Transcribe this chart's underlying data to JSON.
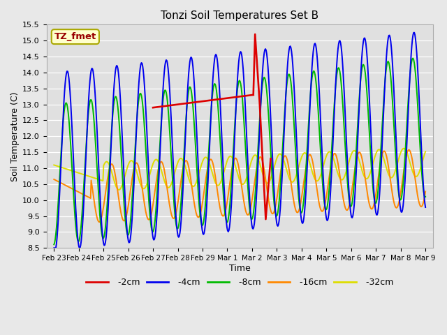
{
  "title": "Tonzi Soil Temperatures Set B",
  "xlabel": "Time",
  "ylabel": "Soil Temperature (C)",
  "ylim": [
    8.5,
    15.5
  ],
  "fig_bg": "#e8e8e8",
  "plot_bg": "#e0e0e0",
  "grid_color": "#ffffff",
  "legend_label": "TZ_fmet",
  "legend_text_color": "#990000",
  "legend_bg": "#ffffcc",
  "legend_edge": "#aaa800",
  "xtick_labels": [
    "Feb 23",
    "Feb 24",
    "Feb 25",
    "Feb 26",
    "Feb 27",
    "Feb 28",
    "Feb 29",
    "Mar 1",
    "Mar 2",
    "Mar 3",
    "Mar 4",
    "Mar 5",
    "Mar 6",
    "Mar 7",
    "Mar 8",
    "Mar 9"
  ],
  "colors": {
    "m2cm": "#dd0000",
    "m4cm": "#0000ee",
    "m8cm": "#00bb00",
    "m16cm": "#ff8800",
    "m32cm": "#dddd00"
  },
  "linewidth": 1.4,
  "series_labels": [
    " -2cm",
    " -4cm",
    " -8cm",
    " -16cm",
    " -32cm"
  ]
}
